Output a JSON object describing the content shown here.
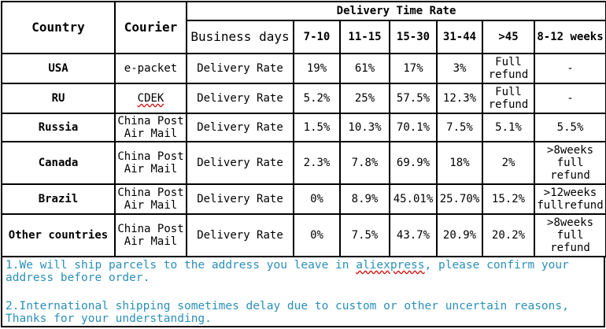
{
  "header": {
    "country": "Country",
    "courier": "Courier",
    "group": "Delivery Time Rate",
    "business_days": "Business days",
    "columns": [
      "7-10",
      "11-15",
      "15-30",
      "31-44",
      ">45",
      "8-12 weeks"
    ]
  },
  "rows": [
    {
      "country": "USA",
      "courier": "e-packet",
      "metric": "Delivery Rate",
      "values": [
        "19%",
        "61%",
        "17%",
        "3%",
        "Full refund",
        "-"
      ]
    },
    {
      "country": "RU",
      "courier": "CDEK",
      "metric": "Delivery Rate",
      "values": [
        "5.2%",
        "25%",
        "57.5%",
        "12.3%",
        "Full refund",
        "-"
      ]
    },
    {
      "country": "Russia",
      "courier": "China Post Air Mail",
      "metric": "Delivery Rate",
      "values": [
        "1.5%",
        "10.3%",
        "70.1%",
        "7.5%",
        "5.1%",
        "5.5%"
      ]
    },
    {
      "country": "Canada",
      "courier": "China Post Air Mail",
      "metric": "Delivery Rate",
      "values": [
        "2.3%",
        "7.8%",
        "69.9%",
        "18%",
        "2%",
        ">8weeks full refund"
      ]
    },
    {
      "country": "Brazil",
      "courier": "China Post Air Mail",
      "metric": "Delivery Rate",
      "values": [
        "0%",
        "8.9%",
        "45.01%",
        "25.70%",
        "15.2%",
        ">12weeks fullrefund"
      ]
    },
    {
      "country": "Other countries",
      "courier": "China Post Air Mail",
      "metric": "Delivery Rate",
      "values": [
        "0%",
        "7.5%",
        "43.7%",
        "20.9%",
        "20.2%",
        ">8weeks full refund"
      ]
    }
  ],
  "notes": {
    "note1_a": "1.We will ship parcels to the address you leave in ",
    "note1_link": "aliexpress",
    "note1_b": ", please confirm your address before order.",
    "note2": "2.International shipping sometimes delay due to custom or other uncertain reasons, Thanks for your understanding."
  }
}
